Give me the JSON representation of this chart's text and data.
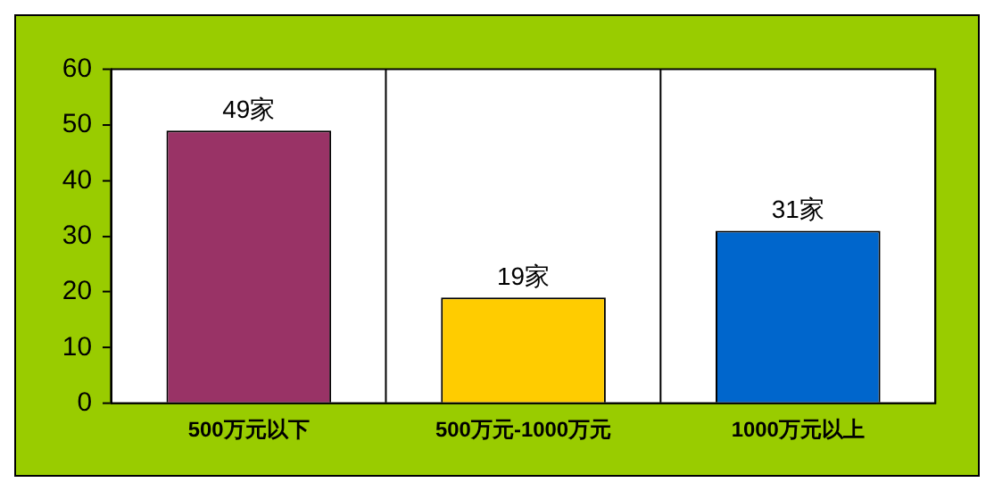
{
  "chart_data": {
    "type": "bar",
    "categories": [
      "500万元以下",
      "500万元-1000万元",
      "1000万元以上"
    ],
    "values": [
      49,
      19,
      31
    ],
    "colors": [
      "#993366",
      "#ffcc00",
      "#0066cc"
    ],
    "value_labels": [
      "49家",
      "19家",
      "31家"
    ],
    "ylim": [
      0,
      60
    ],
    "yticks": [
      0,
      10,
      20,
      30,
      40,
      50,
      60
    ],
    "grid": "x",
    "legend": false
  }
}
